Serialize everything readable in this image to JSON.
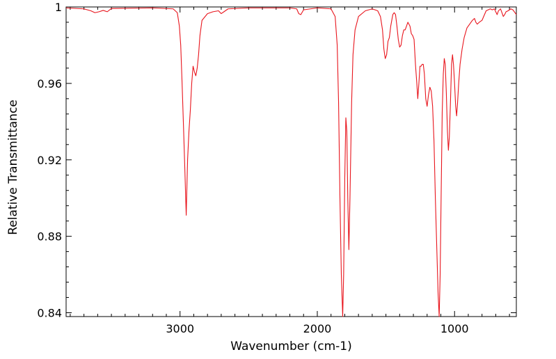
{
  "chart_data": {
    "type": "line",
    "title": "",
    "xlabel": "Wavenumber (cm-1)",
    "ylabel": "Relative Transmittance",
    "xlim": [
      3830,
      550
    ],
    "ylim": [
      0.838,
      1.0
    ],
    "x_reversed": true,
    "x_major_ticks": [
      3000,
      2000,
      1000
    ],
    "y_major_ticks": [
      0.84,
      0.88,
      0.92,
      0.96,
      1
    ],
    "y_tick_labels": [
      "0.84",
      "0.88",
      "0.92",
      "0.96",
      "1"
    ],
    "grid": false,
    "legend": "none",
    "series": [
      {
        "color": "#e8141c",
        "points": [
          [
            3830,
            0.9995
          ],
          [
            3700,
            0.999
          ],
          [
            3650,
            0.998
          ],
          [
            3620,
            0.997
          ],
          [
            3590,
            0.9975
          ],
          [
            3560,
            0.9982
          ],
          [
            3530,
            0.9975
          ],
          [
            3500,
            0.9992
          ],
          [
            3200,
            0.9995
          ],
          [
            3050,
            0.999
          ],
          [
            3020,
            0.997
          ],
          [
            3005,
            0.99
          ],
          [
            2995,
            0.98
          ],
          [
            2985,
            0.96
          ],
          [
            2975,
            0.938
          ],
          [
            2965,
            0.915
          ],
          [
            2955,
            0.891
          ],
          [
            2945,
            0.92
          ],
          [
            2935,
            0.935
          ],
          [
            2925,
            0.946
          ],
          [
            2915,
            0.96
          ],
          [
            2905,
            0.969
          ],
          [
            2895,
            0.966
          ],
          [
            2885,
            0.964
          ],
          [
            2875,
            0.968
          ],
          [
            2865,
            0.975
          ],
          [
            2855,
            0.985
          ],
          [
            2840,
            0.993
          ],
          [
            2800,
            0.9965
          ],
          [
            2760,
            0.9975
          ],
          [
            2720,
            0.998
          ],
          [
            2700,
            0.9965
          ],
          [
            2680,
            0.9975
          ],
          [
            2650,
            0.999
          ],
          [
            2500,
            0.9995
          ],
          [
            2200,
            0.9995
          ],
          [
            2150,
            0.999
          ],
          [
            2135,
            0.9965
          ],
          [
            2120,
            0.996
          ],
          [
            2100,
            0.9985
          ],
          [
            2000,
            0.9995
          ],
          [
            1900,
            0.999
          ],
          [
            1870,
            0.995
          ],
          [
            1855,
            0.98
          ],
          [
            1845,
            0.95
          ],
          [
            1835,
            0.9
          ],
          [
            1825,
            0.86
          ],
          [
            1815,
            0.838
          ],
          [
            1808,
            0.86
          ],
          [
            1800,
            0.91
          ],
          [
            1792,
            0.942
          ],
          [
            1785,
            0.935
          ],
          [
            1778,
            0.9
          ],
          [
            1770,
            0.873
          ],
          [
            1762,
            0.9
          ],
          [
            1750,
            0.95
          ],
          [
            1740,
            0.975
          ],
          [
            1725,
            0.988
          ],
          [
            1700,
            0.995
          ],
          [
            1650,
            0.998
          ],
          [
            1600,
            0.999
          ],
          [
            1560,
            0.998
          ],
          [
            1540,
            0.995
          ],
          [
            1525,
            0.988
          ],
          [
            1515,
            0.978
          ],
          [
            1505,
            0.973
          ],
          [
            1495,
            0.975
          ],
          [
            1485,
            0.982
          ],
          [
            1475,
            0.984
          ],
          [
            1465,
            0.99
          ],
          [
            1450,
            0.996
          ],
          [
            1440,
            0.997
          ],
          [
            1430,
            0.996
          ],
          [
            1420,
            0.99
          ],
          [
            1410,
            0.983
          ],
          [
            1400,
            0.979
          ],
          [
            1390,
            0.98
          ],
          [
            1380,
            0.985
          ],
          [
            1370,
            0.988
          ],
          [
            1360,
            0.988
          ],
          [
            1350,
            0.99
          ],
          [
            1340,
            0.992
          ],
          [
            1325,
            0.99
          ],
          [
            1315,
            0.986
          ],
          [
            1305,
            0.985
          ],
          [
            1295,
            0.983
          ],
          [
            1285,
            0.97
          ],
          [
            1275,
            0.96
          ],
          [
            1268,
            0.952
          ],
          [
            1260,
            0.96
          ],
          [
            1252,
            0.969
          ],
          [
            1244,
            0.969
          ],
          [
            1236,
            0.97
          ],
          [
            1228,
            0.97
          ],
          [
            1220,
            0.965
          ],
          [
            1210,
            0.952
          ],
          [
            1200,
            0.948
          ],
          [
            1190,
            0.954
          ],
          [
            1180,
            0.958
          ],
          [
            1170,
            0.956
          ],
          [
            1160,
            0.948
          ],
          [
            1150,
            0.93
          ],
          [
            1140,
            0.9
          ],
          [
            1130,
            0.875
          ],
          [
            1120,
            0.85
          ],
          [
            1112,
            0.838
          ],
          [
            1105,
            0.86
          ],
          [
            1098,
            0.9
          ],
          [
            1090,
            0.945
          ],
          [
            1082,
            0.965
          ],
          [
            1075,
            0.973
          ],
          [
            1068,
            0.97
          ],
          [
            1060,
            0.955
          ],
          [
            1052,
            0.935
          ],
          [
            1045,
            0.925
          ],
          [
            1038,
            0.932
          ],
          [
            1030,
            0.95
          ],
          [
            1022,
            0.97
          ],
          [
            1015,
            0.975
          ],
          [
            1008,
            0.97
          ],
          [
            1000,
            0.96
          ],
          [
            992,
            0.948
          ],
          [
            985,
            0.943
          ],
          [
            978,
            0.95
          ],
          [
            970,
            0.96
          ],
          [
            960,
            0.97
          ],
          [
            945,
            0.978
          ],
          [
            930,
            0.984
          ],
          [
            910,
            0.989
          ],
          [
            890,
            0.991
          ],
          [
            870,
            0.993
          ],
          [
            855,
            0.994
          ],
          [
            845,
            0.992
          ],
          [
            835,
            0.991
          ],
          [
            820,
            0.992
          ],
          [
            800,
            0.993
          ],
          [
            785,
            0.9955
          ],
          [
            770,
            0.998
          ],
          [
            755,
            0.9985
          ],
          [
            740,
            0.999
          ],
          [
            725,
            0.9985
          ],
          [
            710,
            0.999
          ],
          [
            700,
            0.9975
          ],
          [
            690,
            0.996
          ],
          [
            680,
            0.998
          ],
          [
            665,
            0.999
          ],
          [
            655,
            0.997
          ],
          [
            645,
            0.995
          ],
          [
            635,
            0.996
          ],
          [
            625,
            0.9975
          ],
          [
            610,
            0.998
          ],
          [
            590,
            0.999
          ],
          [
            575,
            0.9985
          ],
          [
            560,
            0.997
          ],
          [
            550,
            0.996
          ]
        ]
      }
    ]
  }
}
